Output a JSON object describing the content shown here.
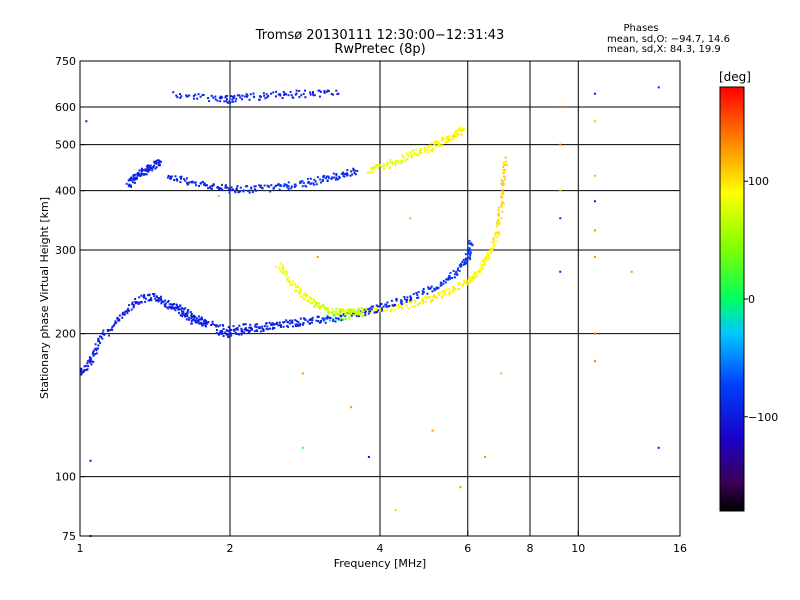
{
  "chart_data": {
    "type": "scatter",
    "title": "Tromsø 20130111 12:30:00−12:31:43",
    "subtitle": "RwPretec (8p)",
    "xlabel": "Frequency [MHz]",
    "ylabel": "Stationary phase Virtual Height [km]",
    "x_scale": "log",
    "y_scale": "log",
    "xlim": [
      1,
      16
    ],
    "ylim": [
      75,
      750
    ],
    "x_ticks": [
      1,
      2,
      4,
      6,
      8,
      10,
      16
    ],
    "y_ticks": [
      75,
      100,
      200,
      300,
      400,
      500,
      600,
      750
    ],
    "x_gridlines": [
      2,
      4,
      6,
      8,
      10
    ],
    "y_gridlines": [
      100,
      200,
      300,
      400,
      500,
      600
    ],
    "grid": true,
    "colorbar": {
      "title": "[deg]",
      "range": [
        -180,
        180
      ],
      "ticks": [
        100,
        0,
        -100
      ],
      "tick_labels": [
        "100",
        "0",
        "−100"
      ]
    },
    "stats": {
      "heading": "Phases",
      "line_o": "mean, sd,O: −94.7, 14.6",
      "line_x": "mean, sd,X:  84.3, 19.9"
    },
    "traces": [
      {
        "x": [
          1.9,
          2.0,
          2.2,
          2.5,
          3.0,
          3.5,
          4.0,
          4.5,
          5.0,
          5.5,
          6.0,
          6.3,
          6.6,
          6.9,
          7.05,
          7.15
        ],
        "y": [
          201,
          200,
          204,
          209,
          214,
          219,
          224,
          229,
          236,
          245,
          258,
          270,
          290,
          330,
          390,
          470
        ],
        "phase": [
          -95,
          -95,
          -95,
          -92,
          -85,
          65,
          90,
          90,
          95,
          95,
          95,
          90,
          90,
          100,
          110,
          110
        ]
      },
      {
        "x": [
          1.5,
          1.7,
          2.0,
          2.3,
          2.7,
          3.2,
          3.7,
          4.1,
          4.6,
          5.2,
          5.7,
          6.0,
          6.1
        ],
        "y": [
          230,
          212,
          206,
          206,
          211,
          215,
          222,
          228,
          238,
          250,
          270,
          290,
          310
        ],
        "phase": [
          -95,
          -95,
          -95,
          -95,
          -95,
          -95,
          -90,
          -90,
          -90,
          -85,
          -80,
          -80,
          -80
        ]
      },
      {
        "x": [
          2.5,
          2.7,
          2.9,
          3.1,
          3.3,
          3.5,
          3.7
        ],
        "y": [
          280,
          250,
          235,
          225,
          222,
          222,
          223
        ],
        "phase": [
          85,
          85,
          80,
          75,
          70,
          70,
          70
        ]
      },
      {
        "x": [
          1.5,
          1.7,
          1.9,
          2.1,
          2.4,
          2.7,
          3.0,
          3.3,
          3.6
        ],
        "y": [
          430,
          415,
          405,
          402,
          405,
          412,
          420,
          430,
          440
        ],
        "phase": [
          -95,
          -95,
          -95,
          -90,
          -85,
          -80,
          -85,
          -90,
          -95
        ]
      },
      {
        "x": [
          3.8,
          4.2,
          4.6,
          5.0,
          5.3,
          5.6,
          5.9
        ],
        "y": [
          440,
          455,
          475,
          490,
          505,
          520,
          540
        ],
        "phase": [
          80,
          80,
          85,
          85,
          90,
          95,
          95
        ]
      },
      {
        "x": [
          1.55,
          1.9,
          2.05,
          2.4,
          2.8,
          3.3
        ],
        "y": [
          640,
          620,
          625,
          635,
          640,
          640
        ],
        "phase": [
          -95,
          -95,
          -90,
          -95,
          -95,
          -95
        ]
      },
      {
        "x": [
          1.0,
          1.05,
          1.1,
          1.2,
          1.3,
          1.4,
          1.5,
          1.6,
          1.7,
          1.8
        ],
        "y": [
          165,
          175,
          195,
          215,
          235,
          240,
          230,
          225,
          215,
          210
        ],
        "phase": [
          -95,
          -95,
          -95,
          -95,
          -95,
          -95,
          -95,
          -95,
          -95,
          -95
        ]
      },
      {
        "x": [
          1.25,
          1.3,
          1.35,
          1.4,
          1.45
        ],
        "y": [
          410,
          430,
          440,
          450,
          460
        ],
        "phase": [
          -95,
          -95,
          -95,
          -95,
          -95
        ]
      }
    ],
    "isolated_points": [
      {
        "x": 1.03,
        "y": 560,
        "phase": -100
      },
      {
        "x": 1.05,
        "y": 108,
        "phase": -100
      },
      {
        "x": 1.05,
        "y": 75,
        "phase": -100
      },
      {
        "x": 1.9,
        "y": 390,
        "phase": 40
      },
      {
        "x": 2.8,
        "y": 165,
        "phase": 130
      },
      {
        "x": 2.8,
        "y": 115,
        "phase": 20
      },
      {
        "x": 3.0,
        "y": 290,
        "phase": 130
      },
      {
        "x": 3.5,
        "y": 140,
        "phase": 130
      },
      {
        "x": 3.8,
        "y": 110,
        "phase": -100
      },
      {
        "x": 4.3,
        "y": 85,
        "phase": 110
      },
      {
        "x": 4.6,
        "y": 350,
        "phase": 120
      },
      {
        "x": 5.1,
        "y": 125,
        "phase": 130
      },
      {
        "x": 5.2,
        "y": 250,
        "phase": -100
      },
      {
        "x": 5.8,
        "y": 95,
        "phase": 130
      },
      {
        "x": 6.5,
        "y": 110,
        "phase": 130
      },
      {
        "x": 7.0,
        "y": 165,
        "phase": 40
      },
      {
        "x": 9.2,
        "y": 600,
        "phase": 140
      },
      {
        "x": 9.2,
        "y": 500,
        "phase": 140
      },
      {
        "x": 9.2,
        "y": 400,
        "phase": 110
      },
      {
        "x": 9.2,
        "y": 350,
        "phase": -90
      },
      {
        "x": 9.2,
        "y": 270,
        "phase": -100
      },
      {
        "x": 10.8,
        "y": 640,
        "phase": -100
      },
      {
        "x": 10.8,
        "y": 560,
        "phase": 40
      },
      {
        "x": 10.8,
        "y": 430,
        "phase": 40
      },
      {
        "x": 10.8,
        "y": 380,
        "phase": -100
      },
      {
        "x": 10.8,
        "y": 330,
        "phase": 130
      },
      {
        "x": 10.8,
        "y": 290,
        "phase": 130
      },
      {
        "x": 10.8,
        "y": 200,
        "phase": 140
      },
      {
        "x": 10.8,
        "y": 175,
        "phase": 140
      },
      {
        "x": 12.8,
        "y": 270,
        "phase": 130
      },
      {
        "x": 14.5,
        "y": 660,
        "phase": -100
      },
      {
        "x": 14.5,
        "y": 115,
        "phase": -100
      }
    ]
  }
}
